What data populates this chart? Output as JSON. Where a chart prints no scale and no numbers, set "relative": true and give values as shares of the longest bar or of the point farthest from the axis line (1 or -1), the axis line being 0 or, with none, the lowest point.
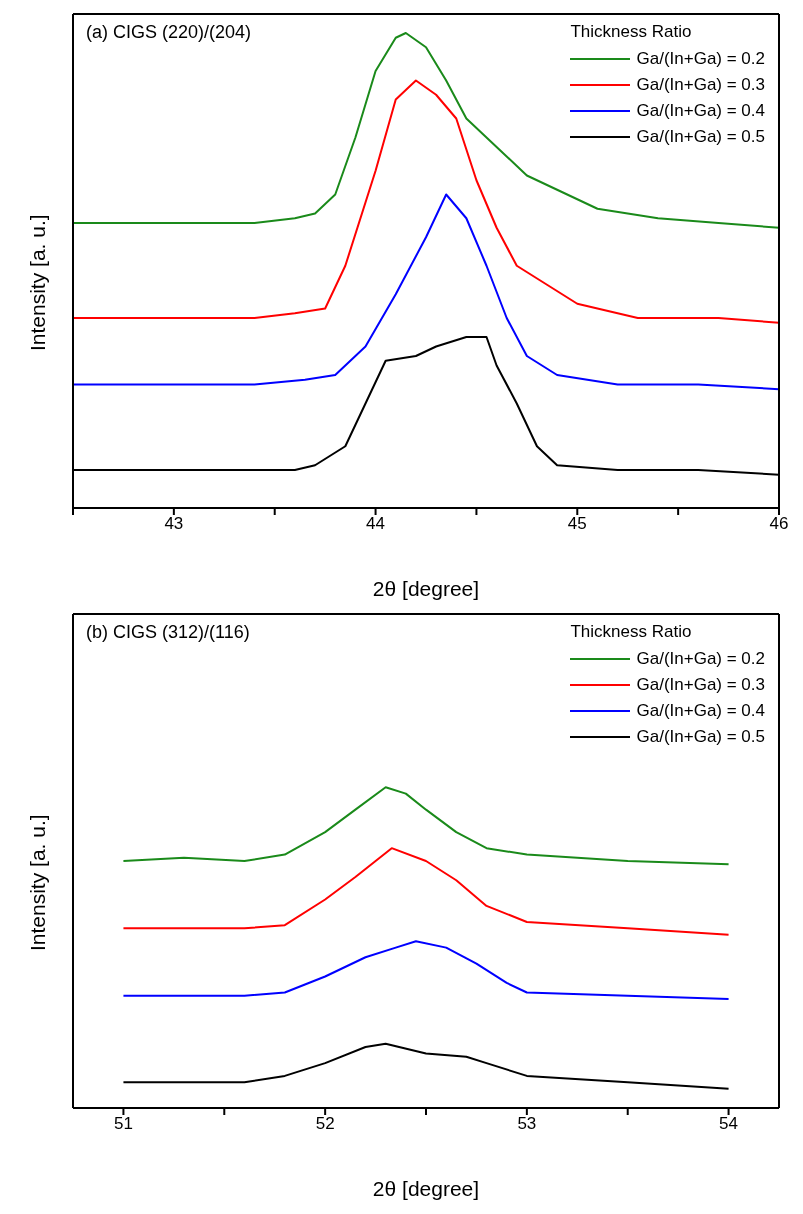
{
  "chart_data": [
    {
      "type": "line",
      "title": "(a) CIGS (220)/(204)",
      "legend_title": "Thickness Ratio",
      "xlabel": "2θ [degree]",
      "ylabel": "Intensity [a. u.]",
      "relative": true,
      "legend": "top right",
      "xlim": [
        42.5,
        46
      ],
      "xticks": [
        {
          "value": 42.5,
          "label": null
        },
        43,
        {
          "value": 43.5,
          "label": null
        },
        44,
        {
          "value": 44.5,
          "label": null
        },
        45,
        {
          "value": 45.5,
          "label": null
        },
        46
      ],
      "series": [
        {
          "name": "Ga/(In+Ga) = 0.2",
          "color": "#1a8a1a",
          "x": [
            42.5,
            42.8,
            43.1,
            43.4,
            43.6,
            43.7,
            43.8,
            43.9,
            44.0,
            44.1,
            44.15,
            44.25,
            44.35,
            44.45,
            44.6,
            44.75,
            44.9,
            45.1,
            45.4,
            45.7,
            46
          ],
          "values": [
            0.6,
            0.6,
            0.6,
            0.6,
            0.61,
            0.62,
            0.66,
            0.78,
            0.92,
            0.99,
            1.0,
            0.97,
            0.9,
            0.82,
            0.76,
            0.7,
            0.67,
            0.63,
            0.61,
            0.6,
            0.59
          ]
        },
        {
          "name": "Ga/(In+Ga) = 0.3",
          "color": "#ff0000",
          "x": [
            42.5,
            42.8,
            43.1,
            43.4,
            43.6,
            43.75,
            43.85,
            44.0,
            44.1,
            44.2,
            44.3,
            44.4,
            44.5,
            44.6,
            44.7,
            44.85,
            45.0,
            45.3,
            45.7,
            46
          ],
          "values": [
            0.4,
            0.4,
            0.4,
            0.4,
            0.41,
            0.42,
            0.51,
            0.71,
            0.86,
            0.9,
            0.87,
            0.82,
            0.69,
            0.59,
            0.51,
            0.47,
            0.43,
            0.4,
            0.4,
            0.39
          ]
        },
        {
          "name": "Ga/(In+Ga) = 0.4",
          "color": "#0000ff",
          "x": [
            42.5,
            42.8,
            43.1,
            43.4,
            43.65,
            43.8,
            43.95,
            44.1,
            44.25,
            44.35,
            44.45,
            44.55,
            44.65,
            44.75,
            44.9,
            45.2,
            45.6,
            46
          ],
          "values": [
            0.26,
            0.26,
            0.26,
            0.26,
            0.27,
            0.28,
            0.34,
            0.45,
            0.57,
            0.66,
            0.61,
            0.51,
            0.4,
            0.32,
            0.28,
            0.26,
            0.26,
            0.25
          ]
        },
        {
          "name": "Ga/(In+Ga) = 0.5",
          "color": "#000000",
          "x": [
            42.5,
            42.8,
            43.1,
            43.4,
            43.6,
            43.7,
            43.85,
            43.95,
            44.05,
            44.2,
            44.3,
            44.45,
            44.55,
            44.6,
            44.7,
            44.8,
            44.9,
            45.2,
            45.6,
            46
          ],
          "values": [
            0.08,
            0.08,
            0.08,
            0.08,
            0.08,
            0.09,
            0.13,
            0.22,
            0.31,
            0.32,
            0.34,
            0.36,
            0.36,
            0.3,
            0.22,
            0.13,
            0.09,
            0.08,
            0.08,
            0.07
          ]
        }
      ]
    },
    {
      "type": "line",
      "title": "(b) CIGS (312)/(116)",
      "legend_title": "Thickness Ratio",
      "xlabel": "2θ [degree]",
      "ylabel": "Intensity [a. u.]",
      "relative": true,
      "legend": "top right",
      "xlim": [
        50.75,
        54.25
      ],
      "xticks": [
        51,
        {
          "value": 51.5,
          "label": null
        },
        52,
        {
          "value": 52.5,
          "label": null
        },
        53,
        {
          "value": 53.5,
          "label": null
        },
        54
      ],
      "series": [
        {
          "name": "Ga/(In+Ga) = 0.2",
          "color": "#1a8a1a",
          "x": [
            51,
            51.3,
            51.6,
            51.8,
            52.0,
            52.15,
            52.3,
            52.4,
            52.5,
            52.65,
            52.8,
            53.0,
            53.5,
            54
          ],
          "values": [
            0.77,
            0.78,
            0.77,
            0.79,
            0.86,
            0.93,
            1.0,
            0.98,
            0.93,
            0.86,
            0.81,
            0.79,
            0.77,
            0.76
          ]
        },
        {
          "name": "Ga/(In+Ga) = 0.3",
          "color": "#ff0000",
          "x": [
            51,
            51.3,
            51.6,
            51.8,
            52.0,
            52.15,
            52.33,
            52.5,
            52.65,
            52.8,
            53.0,
            53.5,
            54
          ],
          "values": [
            0.56,
            0.56,
            0.56,
            0.57,
            0.65,
            0.72,
            0.81,
            0.77,
            0.71,
            0.63,
            0.58,
            0.56,
            0.54
          ]
        },
        {
          "name": "Ga/(In+Ga) = 0.4",
          "color": "#0000ff",
          "x": [
            51,
            51.3,
            51.6,
            51.8,
            52.0,
            52.2,
            52.35,
            52.45,
            52.6,
            52.75,
            52.9,
            53.0,
            53.5,
            54
          ],
          "values": [
            0.35,
            0.35,
            0.35,
            0.36,
            0.41,
            0.47,
            0.5,
            0.52,
            0.5,
            0.45,
            0.39,
            0.36,
            0.35,
            0.34
          ]
        },
        {
          "name": "Ga/(In+Ga) = 0.5",
          "color": "#000000",
          "x": [
            51,
            51.3,
            51.6,
            51.8,
            52.0,
            52.2,
            52.3,
            52.5,
            52.7,
            52.8,
            53.0,
            53.5,
            54
          ],
          "values": [
            0.08,
            0.08,
            0.08,
            0.1,
            0.14,
            0.19,
            0.2,
            0.17,
            0.16,
            0.14,
            0.1,
            0.08,
            0.06
          ]
        }
      ]
    }
  ]
}
